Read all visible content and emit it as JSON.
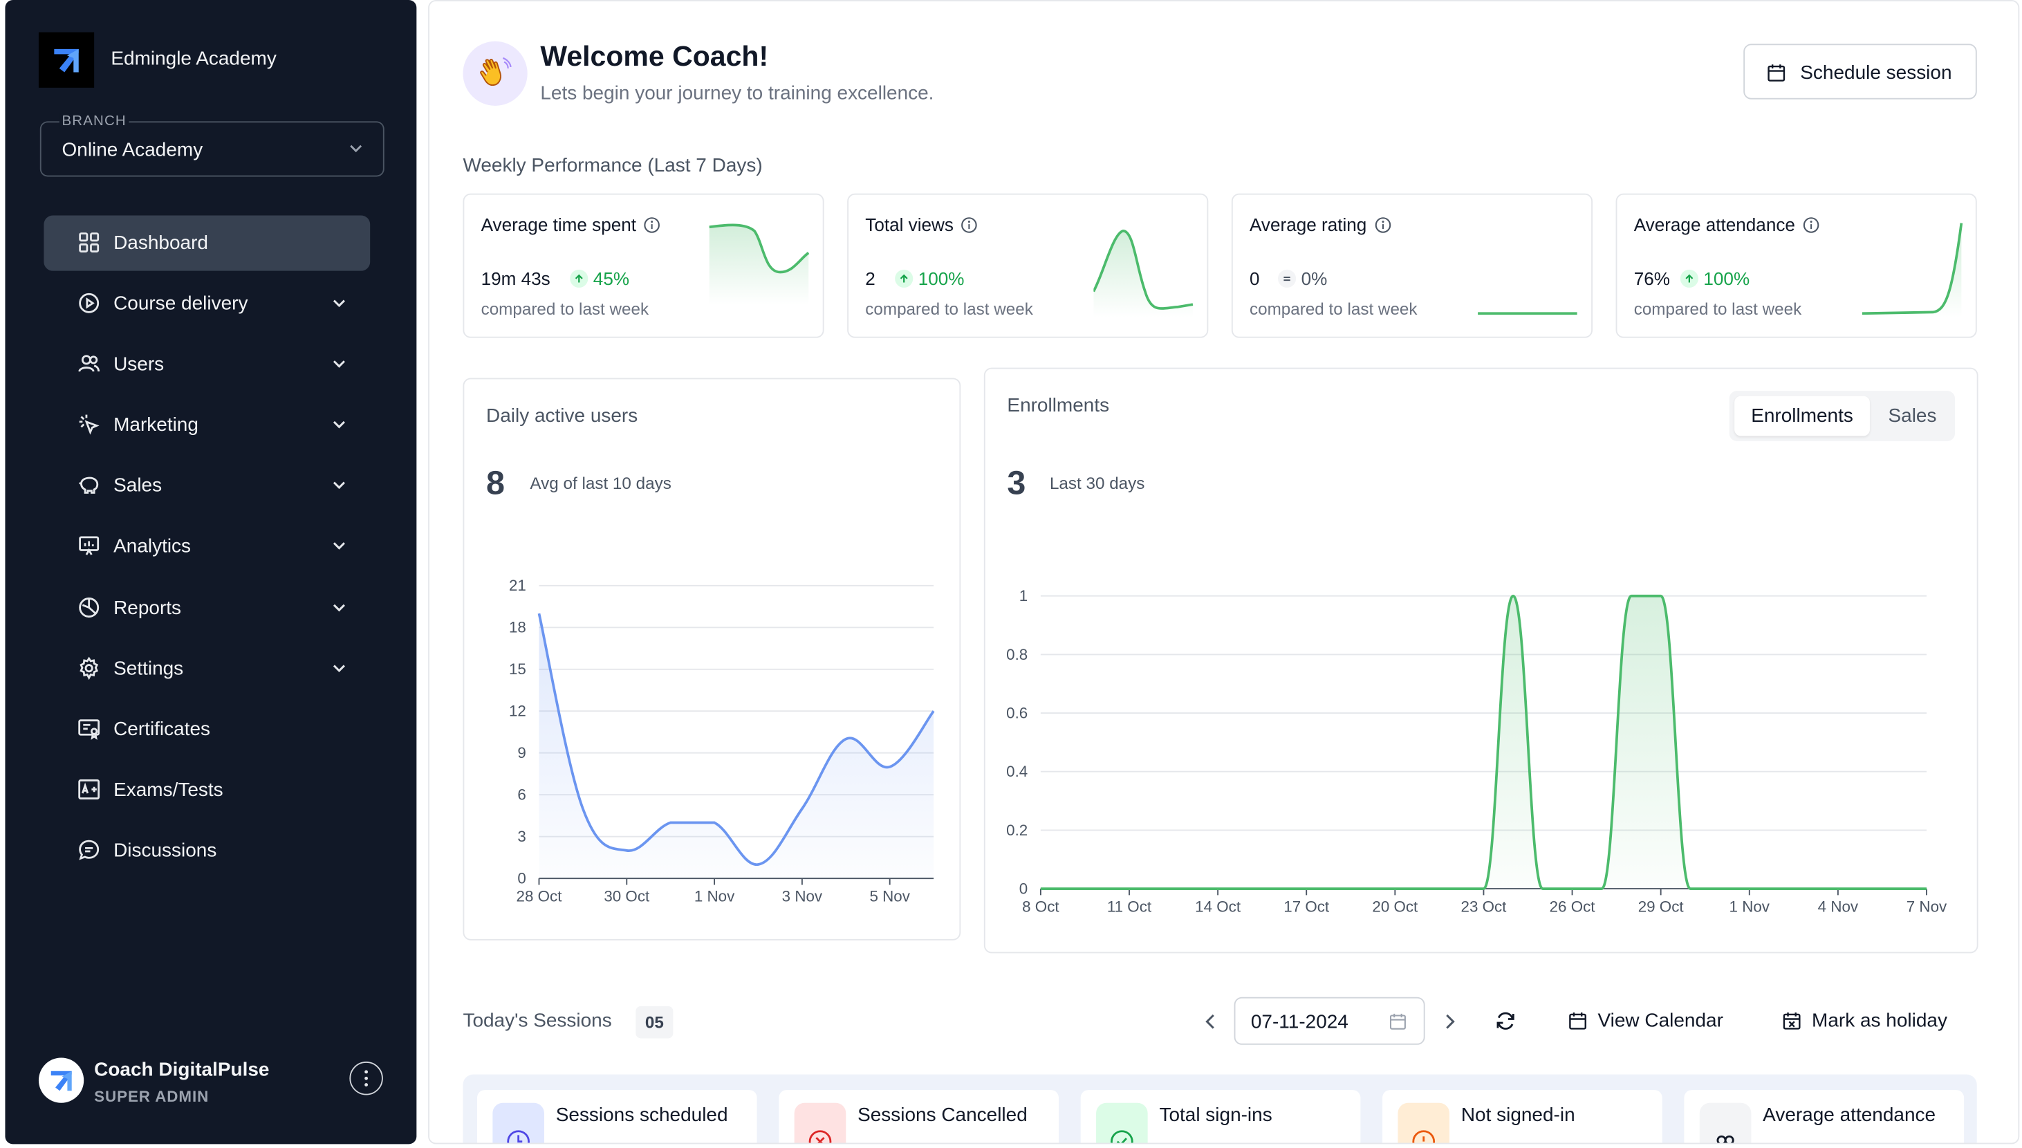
{
  "sidebar": {
    "org_name": "Edmingle Academy",
    "branch_label": "BRANCH",
    "branch_value": "Online Academy",
    "items": [
      {
        "label": "Dashboard",
        "icon": "grid-icon"
      },
      {
        "label": "Course delivery",
        "icon": "play-circle-icon"
      },
      {
        "label": "Users",
        "icon": "users-icon"
      },
      {
        "label": "Marketing",
        "icon": "cursor-click-icon"
      },
      {
        "label": "Sales",
        "icon": "piggy-bank-icon"
      },
      {
        "label": "Analytics",
        "icon": "presentation-chart-icon"
      },
      {
        "label": "Reports",
        "icon": "pie-chart-icon"
      },
      {
        "label": "Settings",
        "icon": "gear-icon"
      },
      {
        "label": "Certificates",
        "icon": "certificate-icon"
      },
      {
        "label": "Exams/Tests",
        "icon": "exam-icon"
      },
      {
        "label": "Discussions",
        "icon": "chat-icon"
      }
    ],
    "user_name": "Coach DigitalPulse",
    "user_role": "SUPER ADMIN"
  },
  "header": {
    "title": "Welcome Coach!",
    "subtitle": "Lets begin your journey to training excellence.",
    "schedule_button": "Schedule session"
  },
  "weekly": {
    "title": "Weekly Performance (Last 7 Days)",
    "compare_text": "compared to last week",
    "cards": [
      {
        "title": "Average time spent",
        "value": "19m 43s",
        "change": "45%",
        "trend": "up"
      },
      {
        "title": "Total views",
        "value": "2",
        "change": "100%",
        "trend": "up"
      },
      {
        "title": "Average rating",
        "value": "0",
        "change": "0%",
        "trend": "flat"
      },
      {
        "title": "Average attendance",
        "value": "76%",
        "change": "100%",
        "trend": "up"
      }
    ]
  },
  "dau": {
    "title": "Daily active users",
    "big": "8",
    "big_sub": "Avg of last 10 days"
  },
  "enroll": {
    "title": "Enrollments",
    "big": "3",
    "big_sub": "Last 30 days",
    "toggle": [
      "Enrollments",
      "Sales"
    ]
  },
  "colors": {
    "sidebar_bg": "#111827",
    "blue_line": "#6b95f0",
    "green_line": "#4cbb6c",
    "up": "#16a34a"
  },
  "chart_data": [
    {
      "type": "area",
      "title": "Daily active users",
      "x": [
        "28 Oct",
        "29 Oct",
        "30 Oct",
        "31 Oct",
        "1 Nov",
        "2 Nov",
        "3 Nov",
        "4 Nov",
        "5 Nov",
        "6 Nov"
      ],
      "x_tick_labels": [
        "28 Oct",
        "30 Oct",
        "1 Nov",
        "3 Nov",
        "5 Nov"
      ],
      "series": [
        {
          "values": [
            19,
            5,
            2,
            4,
            4,
            1,
            5,
            10,
            8,
            12
          ]
        }
      ],
      "ylim": [
        0,
        21
      ],
      "y_ticks": [
        0,
        3,
        6,
        9,
        12,
        15,
        18,
        21
      ],
      "grid": true
    },
    {
      "type": "area",
      "title": "Enrollments",
      "x": [
        "8 Oct",
        "9 Oct",
        "10 Oct",
        "11 Oct",
        "12 Oct",
        "13 Oct",
        "14 Oct",
        "15 Oct",
        "16 Oct",
        "17 Oct",
        "18 Oct",
        "19 Oct",
        "20 Oct",
        "21 Oct",
        "22 Oct",
        "23 Oct",
        "24 Oct",
        "25 Oct",
        "26 Oct",
        "27 Oct",
        "28 Oct",
        "29 Oct",
        "30 Oct",
        "31 Oct",
        "1 Nov",
        "2 Nov",
        "3 Nov",
        "4 Nov",
        "5 Nov",
        "6 Nov",
        "7 Nov"
      ],
      "x_tick_labels": [
        "8 Oct",
        "11 Oct",
        "14 Oct",
        "17 Oct",
        "20 Oct",
        "23 Oct",
        "26 Oct",
        "29 Oct",
        "1 Nov",
        "4 Nov",
        "7 Nov"
      ],
      "series": [
        {
          "values": [
            0,
            0,
            0,
            0,
            0,
            0,
            0,
            0,
            0,
            0,
            0,
            0,
            0,
            0,
            0,
            0,
            1,
            0,
            0,
            0,
            1,
            1,
            0,
            0,
            0,
            0,
            0,
            0,
            0,
            0,
            0
          ]
        }
      ],
      "ylim": [
        0,
        1
      ],
      "y_ticks": [
        0,
        0.2,
        0.4,
        0.6,
        0.8,
        1
      ],
      "grid": true
    }
  ],
  "sessions": {
    "title": "Today's Sessions",
    "count": "05",
    "date": "07-11-2024",
    "view_calendar": "View Calendar",
    "mark_holiday": "Mark as holiday",
    "stats": [
      {
        "label": "Sessions scheduled",
        "icon": "clock-icon"
      },
      {
        "label": "Sessions Cancelled",
        "icon": "x-circle-icon"
      },
      {
        "label": "Total sign-ins",
        "icon": "check-circle-icon"
      },
      {
        "label": "Not signed-in",
        "icon": "alert-circle-icon"
      },
      {
        "label": "Average attendance",
        "icon": "attendance-icon"
      }
    ]
  }
}
